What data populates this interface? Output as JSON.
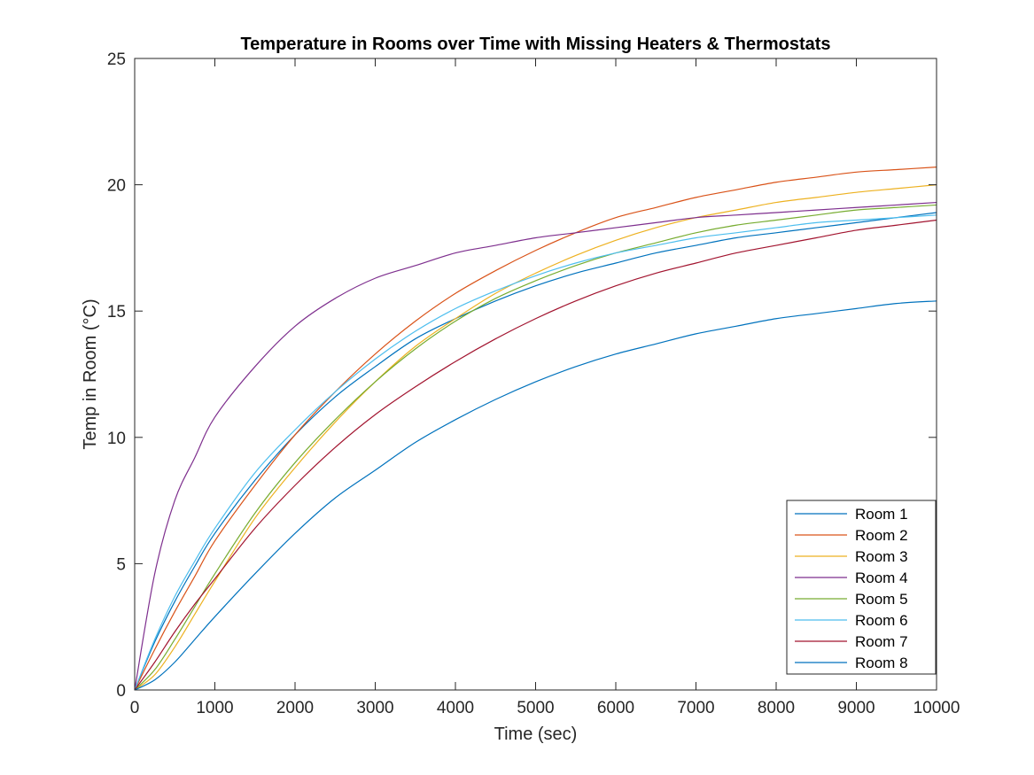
{
  "chart_data": {
    "type": "line",
    "title": "Temperature in Rooms over Time with Missing Heaters & Thermostats",
    "xlabel": "Time (sec)",
    "ylabel": "Temp in Room (°C)",
    "xlim": [
      0,
      10000
    ],
    "ylim": [
      0,
      25
    ],
    "xticks": [
      0,
      1000,
      2000,
      3000,
      4000,
      5000,
      6000,
      7000,
      8000,
      9000,
      10000
    ],
    "yticks": [
      0,
      5,
      10,
      15,
      20,
      25
    ],
    "grid": false,
    "legend_position": "bottom-right",
    "x": [
      0,
      250,
      500,
      750,
      1000,
      1500,
      2000,
      2500,
      3000,
      3500,
      4000,
      4500,
      5000,
      5500,
      6000,
      6500,
      7000,
      7500,
      8000,
      8500,
      9000,
      9500,
      10000
    ],
    "series": [
      {
        "name": "Room 1",
        "color": "#0072BD",
        "values": [
          0,
          1.9,
          3.5,
          4.9,
          6.2,
          8.3,
          10.1,
          11.6,
          12.8,
          13.9,
          14.7,
          15.4,
          16.0,
          16.5,
          16.9,
          17.3,
          17.6,
          17.9,
          18.1,
          18.3,
          18.5,
          18.7,
          18.9
        ]
      },
      {
        "name": "Room 2",
        "color": "#D95319",
        "values": [
          0,
          1.6,
          3.1,
          4.5,
          5.9,
          8.1,
          10.1,
          11.8,
          13.3,
          14.6,
          15.7,
          16.6,
          17.4,
          18.1,
          18.7,
          19.1,
          19.5,
          19.8,
          20.1,
          20.3,
          20.5,
          20.6,
          20.7
        ]
      },
      {
        "name": "Room 3",
        "color": "#EDB120",
        "values": [
          0,
          0.6,
          1.7,
          3.0,
          4.3,
          6.8,
          8.8,
          10.6,
          12.2,
          13.6,
          14.7,
          15.7,
          16.5,
          17.2,
          17.8,
          18.3,
          18.7,
          19.0,
          19.3,
          19.5,
          19.7,
          19.85,
          20.0
        ]
      },
      {
        "name": "Room 4",
        "color": "#7E2F8E",
        "values": [
          0,
          4.6,
          7.5,
          9.2,
          10.8,
          12.8,
          14.4,
          15.5,
          16.3,
          16.8,
          17.3,
          17.6,
          17.9,
          18.1,
          18.3,
          18.5,
          18.7,
          18.8,
          18.9,
          19.0,
          19.1,
          19.2,
          19.3
        ]
      },
      {
        "name": "Room 5",
        "color": "#77AC30",
        "values": [
          0,
          0.8,
          2.0,
          3.3,
          4.6,
          7.0,
          9.0,
          10.7,
          12.2,
          13.5,
          14.6,
          15.5,
          16.2,
          16.8,
          17.3,
          17.7,
          18.1,
          18.4,
          18.6,
          18.8,
          19.0,
          19.1,
          19.2
        ]
      },
      {
        "name": "Room 6",
        "color": "#4DBEEE",
        "values": [
          0,
          2.0,
          3.7,
          5.1,
          6.4,
          8.6,
          10.3,
          11.8,
          13.1,
          14.2,
          15.1,
          15.8,
          16.4,
          16.9,
          17.3,
          17.6,
          17.9,
          18.1,
          18.3,
          18.5,
          18.6,
          18.7,
          18.8
        ]
      },
      {
        "name": "Room 7",
        "color": "#A2142F",
        "values": [
          0,
          1.1,
          2.3,
          3.4,
          4.4,
          6.4,
          8.1,
          9.6,
          10.9,
          12.0,
          13.0,
          13.9,
          14.7,
          15.4,
          16.0,
          16.5,
          16.9,
          17.3,
          17.6,
          17.9,
          18.2,
          18.4,
          18.6
        ]
      },
      {
        "name": "Room 8",
        "color": "#0072BD",
        "values": [
          0,
          0.4,
          1.1,
          2.0,
          2.9,
          4.6,
          6.2,
          7.6,
          8.7,
          9.8,
          10.7,
          11.5,
          12.2,
          12.8,
          13.3,
          13.7,
          14.1,
          14.4,
          14.7,
          14.9,
          15.1,
          15.3,
          15.4
        ]
      }
    ]
  }
}
